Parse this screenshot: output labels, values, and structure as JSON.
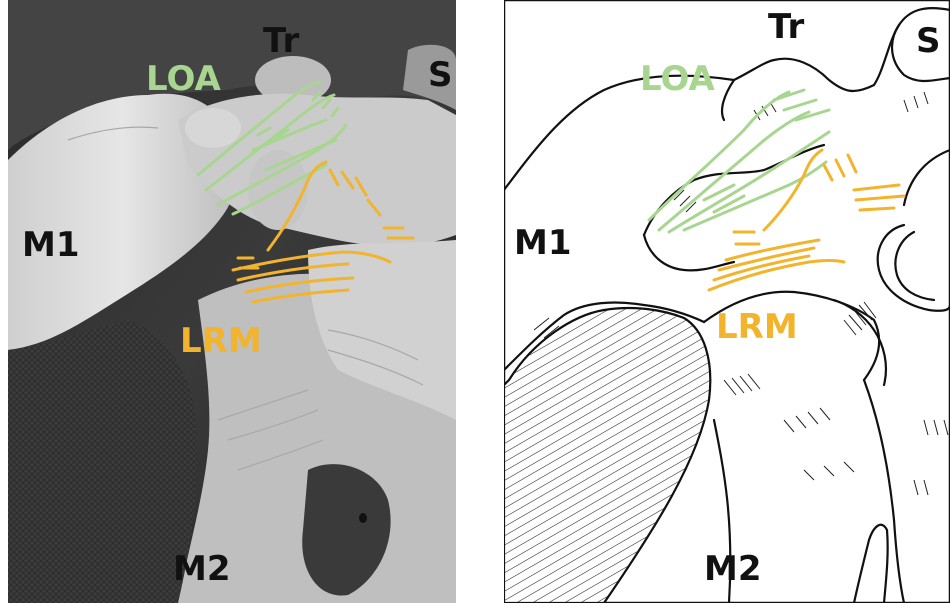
{
  "figure": {
    "colors": {
      "loa_annotation": "#a8d690",
      "lrm_annotation": "#f2b42c",
      "label_text": "#111111",
      "photo_background": "#2b2b2b",
      "bone_tissue": "#d9d9d9"
    },
    "photo_panel": {
      "labels": {
        "tr": "Tr",
        "s": "S",
        "loa": "LOA",
        "m1": "M1",
        "lrm": "LRM",
        "m2": "M2"
      }
    },
    "drawing_panel": {
      "labels": {
        "tr": "Tr",
        "s": "S",
        "loa": "LOA",
        "m1": "M1",
        "lrm": "LRM",
        "m2": "M2"
      }
    }
  }
}
